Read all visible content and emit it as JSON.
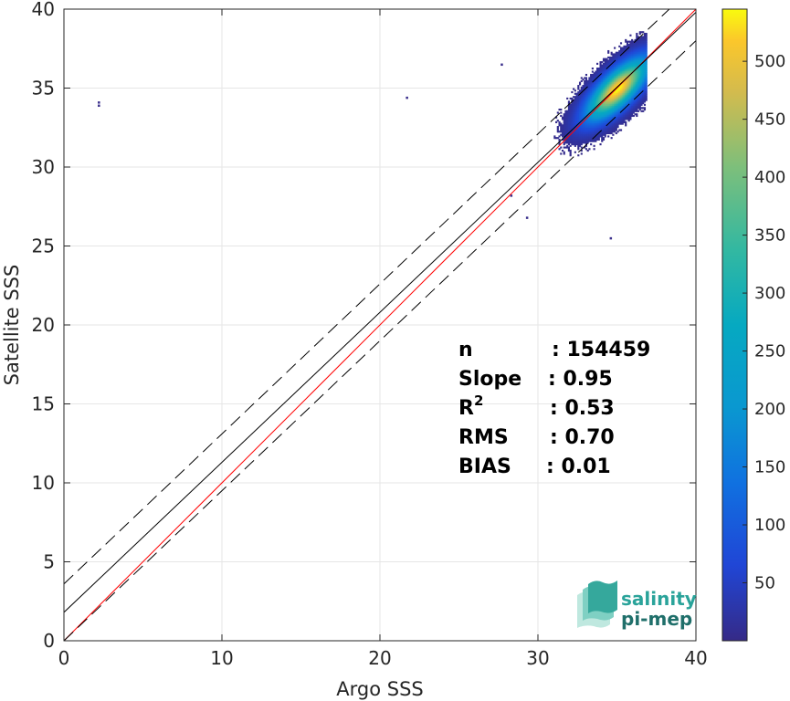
{
  "chart_data": {
    "type": "heatmap",
    "xlabel": "Argo SSS",
    "ylabel": "Satellite SSS",
    "xlim": [
      0,
      40
    ],
    "ylim": [
      0,
      40
    ],
    "xticks": [
      "0",
      "10",
      "20",
      "30",
      "40"
    ],
    "yticks": [
      "0",
      "5",
      "10",
      "15",
      "20",
      "25",
      "30",
      "35",
      "40"
    ],
    "grid": true,
    "colormap": "parula",
    "colorbar": {
      "range": [
        0,
        545
      ],
      "ticks": [
        "50",
        "100",
        "150",
        "200",
        "250",
        "300",
        "350",
        "400",
        "450",
        "500"
      ]
    },
    "density": {
      "center": [
        35.0,
        34.9
      ],
      "x_extent": [
        31.0,
        37.0
      ],
      "y_extent": [
        28.7,
        40.0
      ],
      "peak_count": 545
    },
    "outliers": [
      {
        "x": 2.2,
        "y": 34.1
      },
      {
        "x": 2.2,
        "y": 33.9
      },
      {
        "x": 21.7,
        "y": 34.4
      },
      {
        "x": 27.7,
        "y": 36.5
      },
      {
        "x": 28.3,
        "y": 28.2
      },
      {
        "x": 29.3,
        "y": 26.8
      },
      {
        "x": 34.6,
        "y": 25.5
      }
    ],
    "lines": [
      {
        "kind": "one-to-one",
        "color": "#ff0000",
        "dash": "solid",
        "intercept": 0,
        "slope": 1
      },
      {
        "kind": "fit",
        "color": "#000000",
        "dash": "solid",
        "intercept": 1.8,
        "slope": 0.95
      },
      {
        "kind": "upper-envelope",
        "color": "#000000",
        "dash": "dashed",
        "intercept": 3.6,
        "slope": 0.95
      },
      {
        "kind": "lower-envelope",
        "color": "#000000",
        "dash": "dashed",
        "intercept": 0.0,
        "slope": 0.95
      }
    ],
    "stats": [
      {
        "label": "n",
        "sup": "",
        "value": ": 154459"
      },
      {
        "label": "Slope",
        "sup": "",
        "value": ": 0.95"
      },
      {
        "label": "R",
        "sup": "2",
        "value": ": 0.53"
      },
      {
        "label": "RMS",
        "sup": "",
        "value": ": 0.70"
      },
      {
        "label": "BIAS",
        "sup": "",
        "value": ": 0.01"
      }
    ]
  },
  "logo": {
    "line1": "salinity",
    "line2": "pi-mep"
  }
}
